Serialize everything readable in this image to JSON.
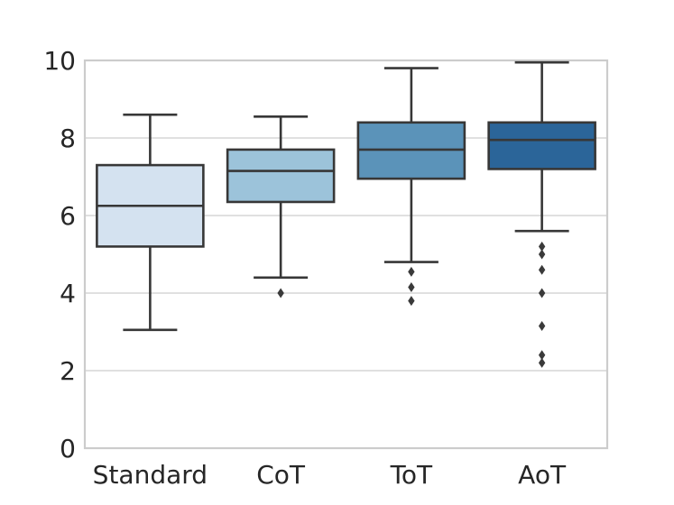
{
  "figure": {
    "background": "#ffffff",
    "text_color": "#262626",
    "box_line_color": "#373737",
    "outlier_color": "#3a3a3a",
    "spine_color": "#cccccc",
    "grid_color": "#dcdcdc"
  },
  "chart_data": {
    "type": "box",
    "title": "",
    "xlabel": "",
    "ylabel": "",
    "categories": [
      "Standard",
      "CoT",
      "ToT",
      "AoT"
    ],
    "ylim": [
      0,
      10
    ],
    "yticks": [
      0,
      2,
      4,
      6,
      8,
      10
    ],
    "grid": "horizontal",
    "legend": "none",
    "marker": "diamond",
    "boxes": [
      {
        "label": "Standard",
        "whisker_low": 3.05,
        "q1": 5.2,
        "median": 6.25,
        "q3": 7.3,
        "whisker_high": 8.6,
        "outliers": [],
        "fill": "#d4e2f0"
      },
      {
        "label": "CoT",
        "whisker_low": 4.4,
        "q1": 6.35,
        "median": 7.15,
        "q3": 7.7,
        "whisker_high": 8.55,
        "outliers": [
          4.0
        ],
        "fill": "#9cc3da"
      },
      {
        "label": "ToT",
        "whisker_low": 4.8,
        "q1": 6.95,
        "median": 7.7,
        "q3": 8.4,
        "whisker_high": 9.8,
        "outliers": [
          4.55,
          4.15,
          3.8
        ],
        "fill": "#5b93b9"
      },
      {
        "label": "AoT",
        "whisker_low": 5.6,
        "q1": 7.2,
        "median": 7.95,
        "q3": 8.4,
        "whisker_high": 9.95,
        "outliers": [
          5.2,
          5.0,
          4.6,
          4.0,
          3.15,
          2.4,
          2.2
        ],
        "fill": "#2b6599"
      }
    ]
  }
}
